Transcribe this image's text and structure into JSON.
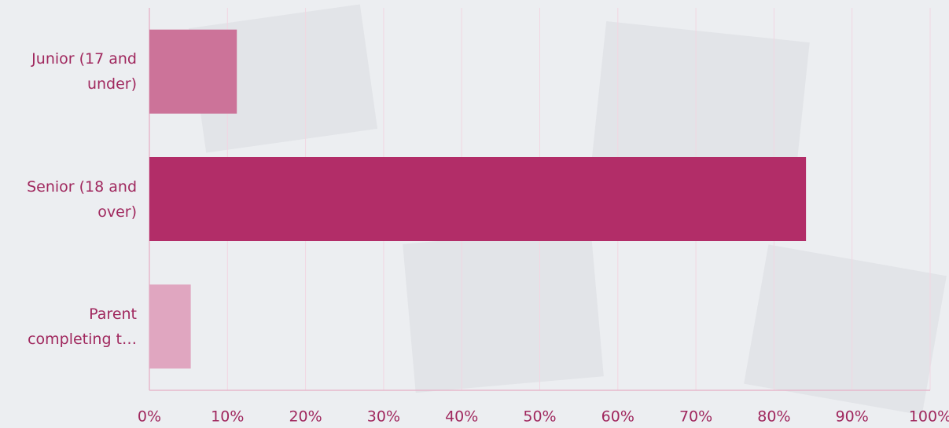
{
  "chart_data": {
    "type": "hbar",
    "categories": [
      "Junior (17 and under)",
      "Senior (18 and over)",
      "Parent completing t…"
    ],
    "values": [
      11.2,
      84.1,
      5.3
    ],
    "colors": [
      "#cc7399",
      "#b22d68",
      "#e0a6c0"
    ],
    "xlim": [
      0,
      100
    ],
    "xticks": [
      {
        "value": 0,
        "label": "0%"
      },
      {
        "value": 10,
        "label": "10%"
      },
      {
        "value": 20,
        "label": "20%"
      },
      {
        "value": 30,
        "label": "30%"
      },
      {
        "value": 40,
        "label": "40%"
      },
      {
        "value": 50,
        "label": "50%"
      },
      {
        "value": 60,
        "label": "60%"
      },
      {
        "value": 70,
        "label": "70%"
      },
      {
        "value": 80,
        "label": "80%"
      },
      {
        "value": 90,
        "label": "90%"
      },
      {
        "value": 100,
        "label": "100%"
      }
    ],
    "grid": true
  }
}
